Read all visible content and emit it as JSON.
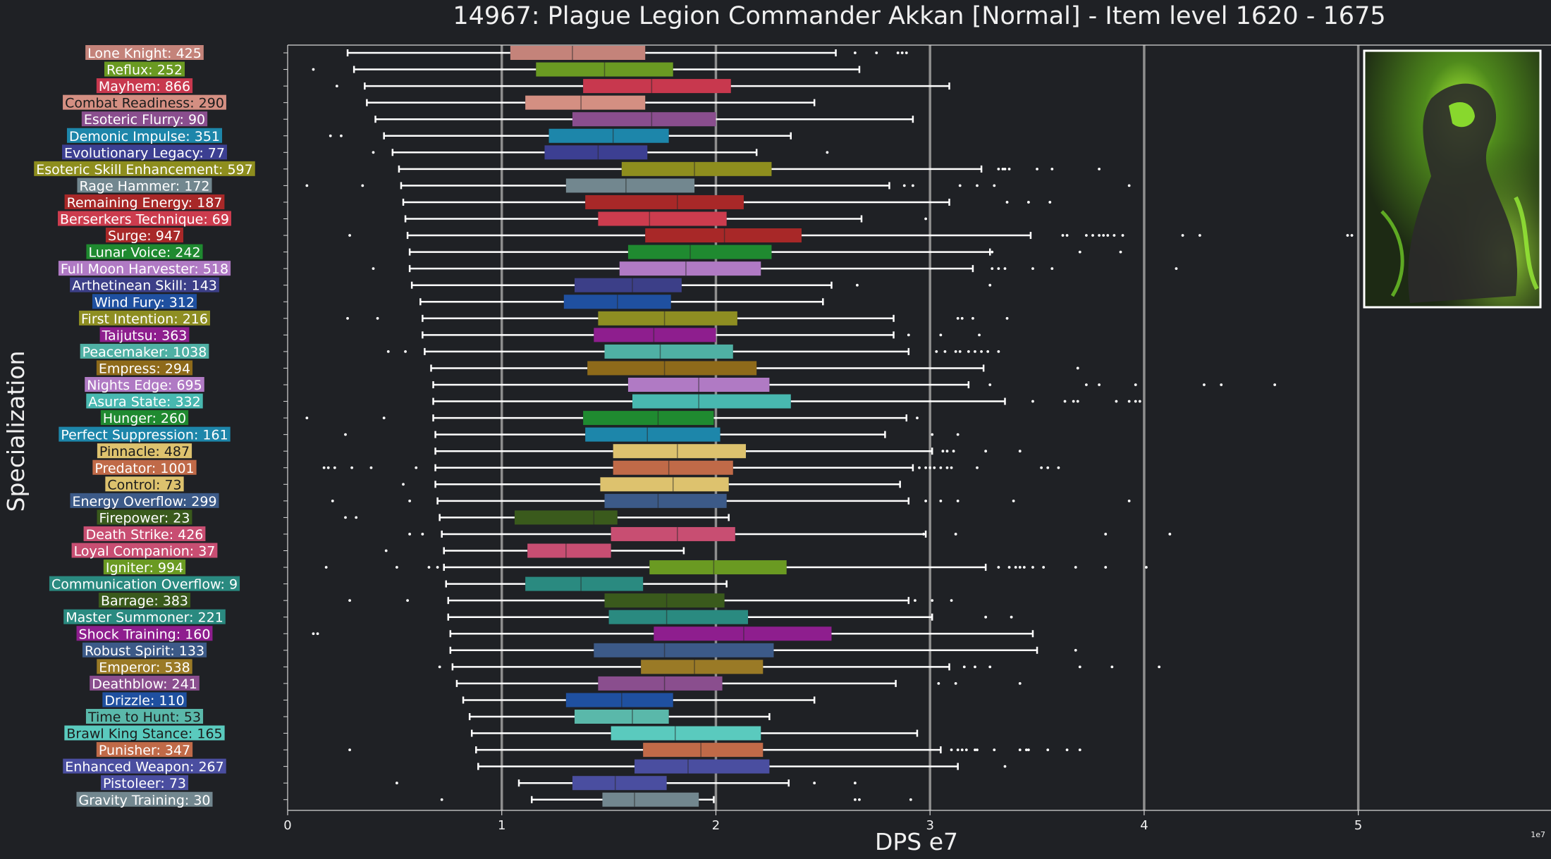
{
  "title": "14967: Plague Legion Commander Akkan [Normal] - Item level 1620 - 1675",
  "chart_data": {
    "type": "box",
    "xlabel": "DPS e7",
    "ylabel": "Specialization",
    "offset_label": "1e7",
    "xlim": [
      0,
      59000000
    ],
    "xticks": [
      0,
      10000000,
      20000000,
      30000000,
      40000000,
      50000000
    ],
    "xtick_labels": [
      "0",
      "1",
      "2",
      "3",
      "4",
      "5"
    ],
    "vgrid": [
      10000000,
      20000000,
      30000000,
      40000000,
      50000000
    ],
    "units": "DPS",
    "series": [
      {
        "label": "Lone Knight: 425",
        "color": "#c4837a",
        "whisker_low": 2800000,
        "q1": 10400000,
        "median": 13300000,
        "q3": 16700000,
        "whisker_high": 25600000,
        "outliers": [
          26500000,
          27500000,
          28500000,
          28700000,
          28900000
        ]
      },
      {
        "label": "Reflux: 252",
        "color": "#6a9a22",
        "whisker_low": 3100000,
        "q1": 11600000,
        "median": 14800000,
        "q3": 18000000,
        "whisker_high": 26700000,
        "outliers": [
          1200000
        ]
      },
      {
        "label": "Mayhem: 866",
        "color": "#c8384e",
        "whisker_low": 3600000,
        "q1": 13800000,
        "median": 17000000,
        "q3": 20700000,
        "whisker_high": 30900000,
        "outliers": [
          2300000
        ]
      },
      {
        "label": "Combat Readiness: 290",
        "color": "#d48f82",
        "whisker_low": 3700000,
        "q1": 11100000,
        "median": 13700000,
        "q3": 16700000,
        "whisker_high": 24600000,
        "outliers": []
      },
      {
        "label": "Esoteric Flurry: 90",
        "color": "#8a4e8e",
        "whisker_low": 4100000,
        "q1": 13300000,
        "median": 17000000,
        "q3": 20000000,
        "whisker_high": 29200000,
        "outliers": []
      },
      {
        "label": "Demonic Impulse: 351",
        "color": "#1d86aa",
        "whisker_low": 4500000,
        "q1": 12200000,
        "median": 15200000,
        "q3": 17800000,
        "whisker_high": 23500000,
        "outliers": [
          2000000,
          2500000
        ]
      },
      {
        "label": "Evolutionary Legacy: 77",
        "color": "#3c3f92",
        "whisker_low": 4900000,
        "q1": 12000000,
        "median": 14500000,
        "q3": 16800000,
        "whisker_high": 21900000,
        "outliers": [
          4000000,
          25200000
        ]
      },
      {
        "label": "Esoteric Skill Enhancement: 597",
        "color": "#8e8e1e",
        "whisker_low": 5200000,
        "q1": 15600000,
        "median": 19000000,
        "q3": 22600000,
        "whisker_high": 32400000,
        "outliers": [
          33200000,
          33400000,
          33500000,
          33700000,
          35000000,
          35700000,
          37900000
        ]
      },
      {
        "label": "Rage Hammer: 172",
        "color": "#72878f",
        "whisker_low": 5300000,
        "q1": 13000000,
        "median": 15800000,
        "q3": 19000000,
        "whisker_high": 28100000,
        "outliers": [
          900000,
          3500000,
          28800000,
          29200000,
          31400000,
          32200000,
          33000000,
          39300000
        ]
      },
      {
        "label": "Remaining Energy: 187",
        "color": "#a82828",
        "whisker_low": 5400000,
        "q1": 13900000,
        "median": 18200000,
        "q3": 21300000,
        "whisker_high": 30900000,
        "outliers": [
          33600000,
          34600000,
          35600000
        ]
      },
      {
        "label": "Berserkers Technique: 69",
        "color": "#cc3c4e",
        "whisker_low": 5500000,
        "q1": 14500000,
        "median": 16900000,
        "q3": 20500000,
        "whisker_high": 26800000,
        "outliers": [
          29800000
        ]
      },
      {
        "label": "Surge: 947",
        "color": "#a82828",
        "whisker_low": 5600000,
        "q1": 16700000,
        "median": 20400000,
        "q3": 24000000,
        "whisker_high": 34700000,
        "outliers": [
          2900000,
          36200000,
          36400000,
          37300000,
          37600000,
          37900000,
          38100000,
          38300000,
          38600000,
          39000000,
          41800000,
          42600000,
          49500000,
          49700000
        ]
      },
      {
        "label": "Lunar Voice: 242",
        "color": "#1f8a30",
        "whisker_low": 5700000,
        "q1": 15900000,
        "median": 18800000,
        "q3": 22600000,
        "whisker_high": 32800000,
        "outliers": [
          32900000,
          37000000,
          38900000
        ]
      },
      {
        "label": "Full Moon Harvester: 518",
        "color": "#b07ac4",
        "whisker_low": 5700000,
        "q1": 15500000,
        "median": 18600000,
        "q3": 22100000,
        "whisker_high": 32000000,
        "outliers": [
          4000000,
          32900000,
          33200000,
          33500000,
          34800000,
          35700000,
          41500000
        ]
      },
      {
        "label": "Arthetinean Skill: 143",
        "color": "#3c3f88",
        "whisker_low": 5800000,
        "q1": 13400000,
        "median": 16100000,
        "q3": 18400000,
        "whisker_high": 25400000,
        "outliers": [
          26600000,
          32800000
        ]
      },
      {
        "label": "Wind Fury: 312",
        "color": "#1f50a0",
        "whisker_low": 6200000,
        "q1": 12900000,
        "median": 15400000,
        "q3": 17900000,
        "whisker_high": 25000000,
        "outliers": []
      },
      {
        "label": "First Intention: 216",
        "color": "#8e8e22",
        "whisker_low": 6300000,
        "q1": 14500000,
        "median": 17600000,
        "q3": 21000000,
        "whisker_high": 28300000,
        "outliers": [
          2800000,
          4200000,
          31300000,
          31500000,
          32000000,
          33600000
        ]
      },
      {
        "label": "Taijutsu: 363",
        "color": "#8e1e8e",
        "whisker_low": 6300000,
        "q1": 14300000,
        "median": 17100000,
        "q3": 20000000,
        "whisker_high": 28300000,
        "outliers": [
          29000000,
          30500000,
          32300000
        ]
      },
      {
        "label": "Peacemaker: 1038",
        "color": "#4fb0a4",
        "whisker_low": 6400000,
        "q1": 14800000,
        "median": 17400000,
        "q3": 20800000,
        "whisker_high": 29000000,
        "outliers": [
          4700000,
          5500000,
          30300000,
          30700000,
          31200000,
          31400000,
          31800000,
          32100000,
          32400000,
          32700000,
          33200000
        ]
      },
      {
        "label": "Empress: 294",
        "color": "#8e6a1a",
        "whisker_low": 6700000,
        "q1": 14000000,
        "median": 17600000,
        "q3": 21900000,
        "whisker_high": 32500000,
        "outliers": [
          36900000
        ]
      },
      {
        "label": "Nights Edge: 695",
        "color": "#b07ac4",
        "whisker_low": 6800000,
        "q1": 15900000,
        "median": 19200000,
        "q3": 22500000,
        "whisker_high": 31800000,
        "outliers": [
          32800000,
          37300000,
          37900000,
          39600000,
          42800000,
          43600000,
          46100000
        ]
      },
      {
        "label": "Asura State: 332",
        "color": "#48b8b0",
        "whisker_low": 6800000,
        "q1": 16100000,
        "median": 19200000,
        "q3": 23500000,
        "whisker_high": 33500000,
        "outliers": [
          34800000,
          36300000,
          36700000,
          36900000,
          38700000,
          39300000,
          39600000,
          39800000
        ]
      },
      {
        "label": "Hunger: 260",
        "color": "#1f8a30",
        "whisker_low": 6800000,
        "q1": 13800000,
        "median": 17300000,
        "q3": 19900000,
        "whisker_high": 28900000,
        "outliers": [
          900000,
          4500000,
          29400000
        ]
      },
      {
        "label": "Perfect Suppression: 161",
        "color": "#1d86aa",
        "whisker_low": 6900000,
        "q1": 13900000,
        "median": 16800000,
        "q3": 20200000,
        "whisker_high": 27900000,
        "outliers": [
          2700000,
          30100000,
          31300000
        ]
      },
      {
        "label": "Pinnacle: 487",
        "color": "#ddc26e",
        "whisker_low": 6900000,
        "q1": 15200000,
        "median": 18200000,
        "q3": 21400000,
        "whisker_high": 30100000,
        "outliers": [
          30600000,
          30800000,
          31100000,
          32600000,
          34200000
        ]
      },
      {
        "label": "Predator: 1001",
        "color": "#c06a48",
        "whisker_low": 6900000,
        "q1": 15200000,
        "median": 17800000,
        "q3": 20800000,
        "whisker_high": 29200000,
        "outliers": [
          1700000,
          1900000,
          2200000,
          3000000,
          3900000,
          6000000,
          29500000,
          29800000,
          30000000,
          30200000,
          30500000,
          30800000,
          31000000,
          32200000,
          35200000,
          35500000,
          36000000
        ]
      },
      {
        "label": "Control: 73",
        "color": "#ddc26e",
        "whisker_low": 6900000,
        "q1": 14600000,
        "median": 18000000,
        "q3": 20600000,
        "whisker_high": 28600000,
        "outliers": [
          5400000
        ]
      },
      {
        "label": "Energy Overflow: 299",
        "color": "#3c5a88",
        "whisker_low": 7000000,
        "q1": 14800000,
        "median": 17300000,
        "q3": 20500000,
        "whisker_high": 29000000,
        "outliers": [
          2100000,
          5700000,
          29800000,
          30500000,
          31300000,
          33900000,
          39300000
        ]
      },
      {
        "label": "Firepower: 23",
        "color": "#3a5a1c",
        "whisker_low": 7100000,
        "q1": 10600000,
        "median": 14300000,
        "q3": 15400000,
        "whisker_high": 20600000,
        "outliers": [
          2700000,
          3200000
        ]
      },
      {
        "label": "Death Strike: 426",
        "color": "#c84e72",
        "whisker_low": 7200000,
        "q1": 15100000,
        "median": 18200000,
        "q3": 20900000,
        "whisker_high": 29800000,
        "outliers": [
          5700000,
          6300000,
          29700000,
          31200000,
          38200000,
          41200000
        ]
      },
      {
        "label": "Loyal Companion: 37",
        "color": "#c84e72",
        "whisker_low": 7300000,
        "q1": 11200000,
        "median": 13000000,
        "q3": 15100000,
        "whisker_high": 18500000,
        "outliers": [
          4600000
        ]
      },
      {
        "label": "Igniter: 994",
        "color": "#6a9a22",
        "whisker_low": 7300000,
        "q1": 16900000,
        "median": 19900000,
        "q3": 23300000,
        "whisker_high": 32600000,
        "outliers": [
          1800000,
          5100000,
          6600000,
          7000000,
          33200000,
          33700000,
          34000000,
          34200000,
          34400000,
          34800000,
          35300000,
          36800000,
          38200000,
          40100000
        ]
      },
      {
        "label": "Communication Overflow: 9",
        "color": "#2a8a80",
        "whisker_low": 7400000,
        "q1": 11100000,
        "median": 13700000,
        "q3": 16600000,
        "whisker_high": 20500000,
        "outliers": []
      },
      {
        "label": "Barrage: 383",
        "color": "#3a5a1c",
        "whisker_low": 7500000,
        "q1": 14800000,
        "median": 17700000,
        "q3": 20400000,
        "whisker_high": 29000000,
        "outliers": [
          2900000,
          5600000,
          29300000,
          30100000,
          31000000
        ]
      },
      {
        "label": "Master Summoner: 221",
        "color": "#2a8a80",
        "whisker_low": 7500000,
        "q1": 15000000,
        "median": 17700000,
        "q3": 21500000,
        "whisker_high": 30100000,
        "outliers": [
          32600000,
          33800000
        ]
      },
      {
        "label": "Shock Training: 160",
        "color": "#8e1e8e",
        "whisker_low": 7600000,
        "q1": 17100000,
        "median": 21300000,
        "q3": 25400000,
        "whisker_high": 34800000,
        "outliers": [
          1200000,
          1400000
        ]
      },
      {
        "label": "Robust Spirit: 133",
        "color": "#3c5a88",
        "whisker_low": 7600000,
        "q1": 14300000,
        "median": 17600000,
        "q3": 22700000,
        "whisker_high": 35000000,
        "outliers": [
          36800000
        ]
      },
      {
        "label": "Emperor: 538",
        "color": "#9a7a26",
        "whisker_low": 7700000,
        "q1": 16500000,
        "median": 19000000,
        "q3": 22200000,
        "whisker_high": 30900000,
        "outliers": [
          7100000,
          31600000,
          32100000,
          32800000,
          37000000,
          38500000,
          40700000
        ]
      },
      {
        "label": "Deathblow: 241",
        "color": "#8a4e8e",
        "whisker_low": 7900000,
        "q1": 14500000,
        "median": 17600000,
        "q3": 20300000,
        "whisker_high": 28400000,
        "outliers": [
          30400000,
          31200000,
          34200000
        ]
      },
      {
        "label": "Drizzle: 110",
        "color": "#1f50a0",
        "whisker_low": 8200000,
        "q1": 13000000,
        "median": 15600000,
        "q3": 18000000,
        "whisker_high": 24600000,
        "outliers": []
      },
      {
        "label": "Time to Hunt: 53",
        "color": "#5ab8aa",
        "whisker_low": 8500000,
        "q1": 13400000,
        "median": 16100000,
        "q3": 17800000,
        "whisker_high": 22500000,
        "outliers": []
      },
      {
        "label": "Brawl King Stance: 165",
        "color": "#5acabe",
        "whisker_low": 8600000,
        "q1": 15100000,
        "median": 18100000,
        "q3": 22100000,
        "whisker_high": 29400000,
        "outliers": []
      },
      {
        "label": "Punisher: 347",
        "color": "#c06a48",
        "whisker_low": 8800000,
        "q1": 16600000,
        "median": 19300000,
        "q3": 22200000,
        "whisker_high": 30500000,
        "outliers": [
          2900000,
          31000000,
          31300000,
          31500000,
          31700000,
          32100000,
          32200000,
          33000000,
          34200000,
          34500000,
          34600000,
          35500000,
          36400000,
          37000000
        ]
      },
      {
        "label": "Enhanced Weapon: 267",
        "color": "#4a4ea0",
        "whisker_low": 8900000,
        "q1": 16200000,
        "median": 18700000,
        "q3": 22500000,
        "whisker_high": 31300000,
        "outliers": [
          33500000
        ]
      },
      {
        "label": "Pistoleer: 73",
        "color": "#4a4ea0",
        "whisker_low": 10800000,
        "q1": 13300000,
        "median": 15300000,
        "q3": 17700000,
        "whisker_high": 23400000,
        "outliers": [
          5100000,
          24600000,
          26500000
        ]
      },
      {
        "label": "Gravity Training: 30",
        "color": "#72878f",
        "whisker_low": 11400000,
        "q1": 14700000,
        "median": 16200000,
        "q3": 19200000,
        "whisker_high": 19900000,
        "outliers": [
          7200000,
          26500000,
          26700000,
          29100000
        ]
      }
    ]
  },
  "thumbnail": {
    "alt": "Plague Legion Commander Akkan portrait",
    "frame_color": "#ffffff"
  }
}
